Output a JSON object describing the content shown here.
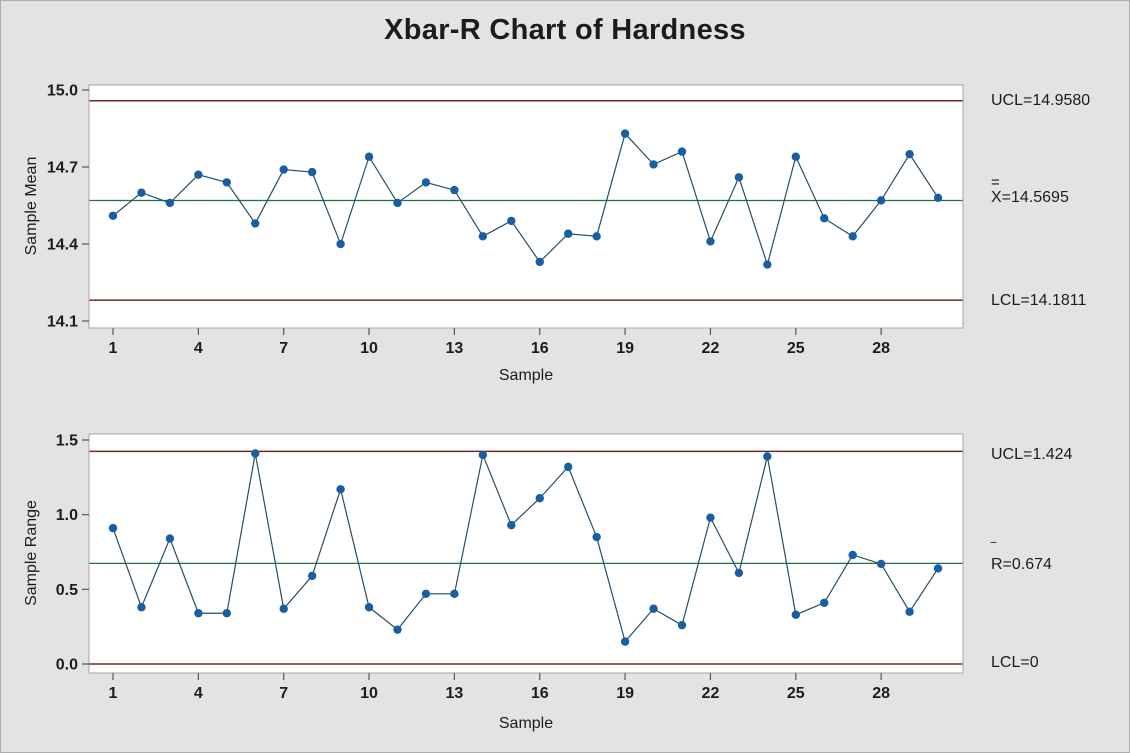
{
  "title": "Xbar-R Chart of Hardness",
  "colors": {
    "background": "#E3E3E3",
    "plot_background": "#FFFFFF",
    "frame": "#A6A6A6",
    "limit_line": "#6F2A25",
    "center_line": "#1F7246",
    "marker": "#1A5EA2",
    "connect_line": "#254F66",
    "tick": "#555555",
    "text": "#1C1C1C"
  },
  "chart_data": [
    {
      "type": "line",
      "name": "Xbar chart",
      "xlabel": "Sample",
      "ylabel": "Sample Mean",
      "x": [
        1,
        2,
        3,
        4,
        5,
        6,
        7,
        8,
        9,
        10,
        11,
        12,
        13,
        14,
        15,
        16,
        17,
        18,
        19,
        20,
        21,
        22,
        23,
        24,
        25,
        26,
        27,
        28,
        29,
        30
      ],
      "values": [
        14.51,
        14.6,
        14.56,
        14.67,
        14.64,
        14.48,
        14.69,
        14.68,
        14.4,
        14.74,
        14.56,
        14.64,
        14.61,
        14.43,
        14.49,
        14.33,
        14.44,
        14.43,
        14.83,
        14.71,
        14.76,
        14.41,
        14.66,
        14.32,
        14.74,
        14.5,
        14.43,
        14.57,
        14.75,
        14.58
      ],
      "ucl": 14.958,
      "center": 14.5695,
      "lcl": 14.1811,
      "ylim": [
        14.07,
        15.02
      ],
      "yticks": [
        15.0,
        14.7,
        14.4,
        14.1
      ],
      "ytick_labels": [
        "15.0",
        "14.7",
        "14.4",
        "14.1"
      ],
      "xticks": [
        1,
        4,
        7,
        10,
        13,
        16,
        19,
        22,
        25,
        28
      ],
      "annotations": {
        "ucl_label": "UCL=14.9580",
        "center_mark": "=",
        "center_label": "X=14.5695",
        "lcl_label": "LCL=14.1811"
      }
    },
    {
      "type": "line",
      "name": "R chart",
      "xlabel": "Sample",
      "ylabel": "Sample Range",
      "x": [
        1,
        2,
        3,
        4,
        5,
        6,
        7,
        8,
        9,
        10,
        11,
        12,
        13,
        14,
        15,
        16,
        17,
        18,
        19,
        20,
        21,
        22,
        23,
        24,
        25,
        26,
        27,
        28,
        29,
        30
      ],
      "values": [
        0.91,
        0.38,
        0.84,
        0.34,
        0.34,
        1.41,
        0.37,
        0.59,
        1.17,
        0.38,
        0.23,
        0.47,
        0.47,
        1.4,
        0.93,
        1.11,
        1.32,
        0.85,
        0.15,
        0.37,
        0.26,
        0.98,
        0.61,
        1.39,
        0.33,
        0.41,
        0.73,
        0.67,
        0.35,
        0.64
      ],
      "ucl": 1.424,
      "center": 0.674,
      "lcl": 0,
      "ylim": [
        -0.06,
        1.55
      ],
      "yticks": [
        1.5,
        1.0,
        0.5,
        0.0
      ],
      "ytick_labels": [
        "1.5",
        "1.0",
        "0.5",
        "0.0"
      ],
      "xticks": [
        1,
        4,
        7,
        10,
        13,
        16,
        19,
        22,
        25,
        28
      ],
      "annotations": {
        "ucl_label": "UCL=1.424",
        "center_mark": "‾",
        "center_label": "R=0.674",
        "lcl_label": "LCL=0"
      }
    }
  ]
}
